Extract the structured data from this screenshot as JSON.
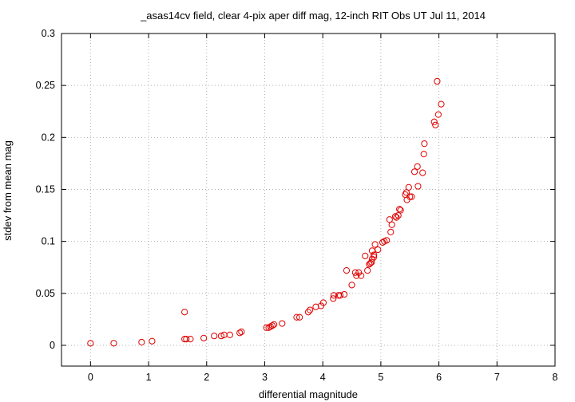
{
  "chart_data": {
    "type": "scatter",
    "title": "_asas14cv field, clear 4-pix aper diff mag,  12-inch RIT Obs UT Jul 11, 2014",
    "xlabel": "differential magnitude",
    "ylabel": "stdev from mean mag",
    "xlim": [
      -0.5,
      8
    ],
    "ylim": [
      -0.02,
      0.3
    ],
    "xticks": [
      "0",
      "1",
      "2",
      "3",
      "4",
      "5",
      "6",
      "7",
      "8"
    ],
    "yticks": [
      "0",
      "0.05",
      "0.1",
      "0.15",
      "0.2",
      "0.25",
      "0.3"
    ],
    "grid": true,
    "marker": "open-circle",
    "marker_color": "#e00000",
    "points": [
      [
        0.0,
        0.002
      ],
      [
        0.4,
        0.002
      ],
      [
        0.88,
        0.003
      ],
      [
        1.06,
        0.004
      ],
      [
        1.62,
        0.032
      ],
      [
        1.62,
        0.006
      ],
      [
        1.65,
        0.006
      ],
      [
        1.72,
        0.006
      ],
      [
        1.95,
        0.007
      ],
      [
        2.13,
        0.009
      ],
      [
        2.25,
        0.009
      ],
      [
        2.3,
        0.01
      ],
      [
        2.4,
        0.01
      ],
      [
        2.57,
        0.012
      ],
      [
        2.6,
        0.013
      ],
      [
        3.03,
        0.017
      ],
      [
        3.07,
        0.017
      ],
      [
        3.1,
        0.018
      ],
      [
        3.13,
        0.019
      ],
      [
        3.16,
        0.02
      ],
      [
        3.3,
        0.021
      ],
      [
        3.55,
        0.027
      ],
      [
        3.6,
        0.027
      ],
      [
        3.75,
        0.032
      ],
      [
        3.78,
        0.034
      ],
      [
        3.88,
        0.037
      ],
      [
        3.97,
        0.038
      ],
      [
        4.01,
        0.041
      ],
      [
        4.18,
        0.045
      ],
      [
        4.19,
        0.048
      ],
      [
        4.27,
        0.048
      ],
      [
        4.3,
        0.048
      ],
      [
        4.37,
        0.049
      ],
      [
        4.41,
        0.072
      ],
      [
        4.5,
        0.058
      ],
      [
        4.56,
        0.07
      ],
      [
        4.58,
        0.067
      ],
      [
        4.62,
        0.07
      ],
      [
        4.66,
        0.067
      ],
      [
        4.73,
        0.086
      ],
      [
        4.77,
        0.072
      ],
      [
        4.8,
        0.078
      ],
      [
        4.82,
        0.079
      ],
      [
        4.84,
        0.08
      ],
      [
        4.85,
        0.083
      ],
      [
        4.85,
        0.091
      ],
      [
        4.88,
        0.085
      ],
      [
        4.88,
        0.087
      ],
      [
        4.9,
        0.097
      ],
      [
        4.95,
        0.092
      ],
      [
        5.03,
        0.099
      ],
      [
        5.06,
        0.1
      ],
      [
        5.1,
        0.101
      ],
      [
        5.15,
        0.121
      ],
      [
        5.17,
        0.109
      ],
      [
        5.19,
        0.116
      ],
      [
        5.25,
        0.124
      ],
      [
        5.27,
        0.123
      ],
      [
        5.3,
        0.125
      ],
      [
        5.32,
        0.131
      ],
      [
        5.34,
        0.13
      ],
      [
        5.42,
        0.145
      ],
      [
        5.44,
        0.147
      ],
      [
        5.45,
        0.14
      ],
      [
        5.48,
        0.152
      ],
      [
        5.5,
        0.143
      ],
      [
        5.53,
        0.143
      ],
      [
        5.58,
        0.167
      ],
      [
        5.63,
        0.172
      ],
      [
        5.64,
        0.153
      ],
      [
        5.72,
        0.166
      ],
      [
        5.74,
        0.184
      ],
      [
        5.75,
        0.194
      ],
      [
        5.92,
        0.215
      ],
      [
        5.94,
        0.212
      ],
      [
        5.97,
        0.254
      ],
      [
        5.99,
        0.222
      ],
      [
        6.04,
        0.232
      ]
    ]
  }
}
